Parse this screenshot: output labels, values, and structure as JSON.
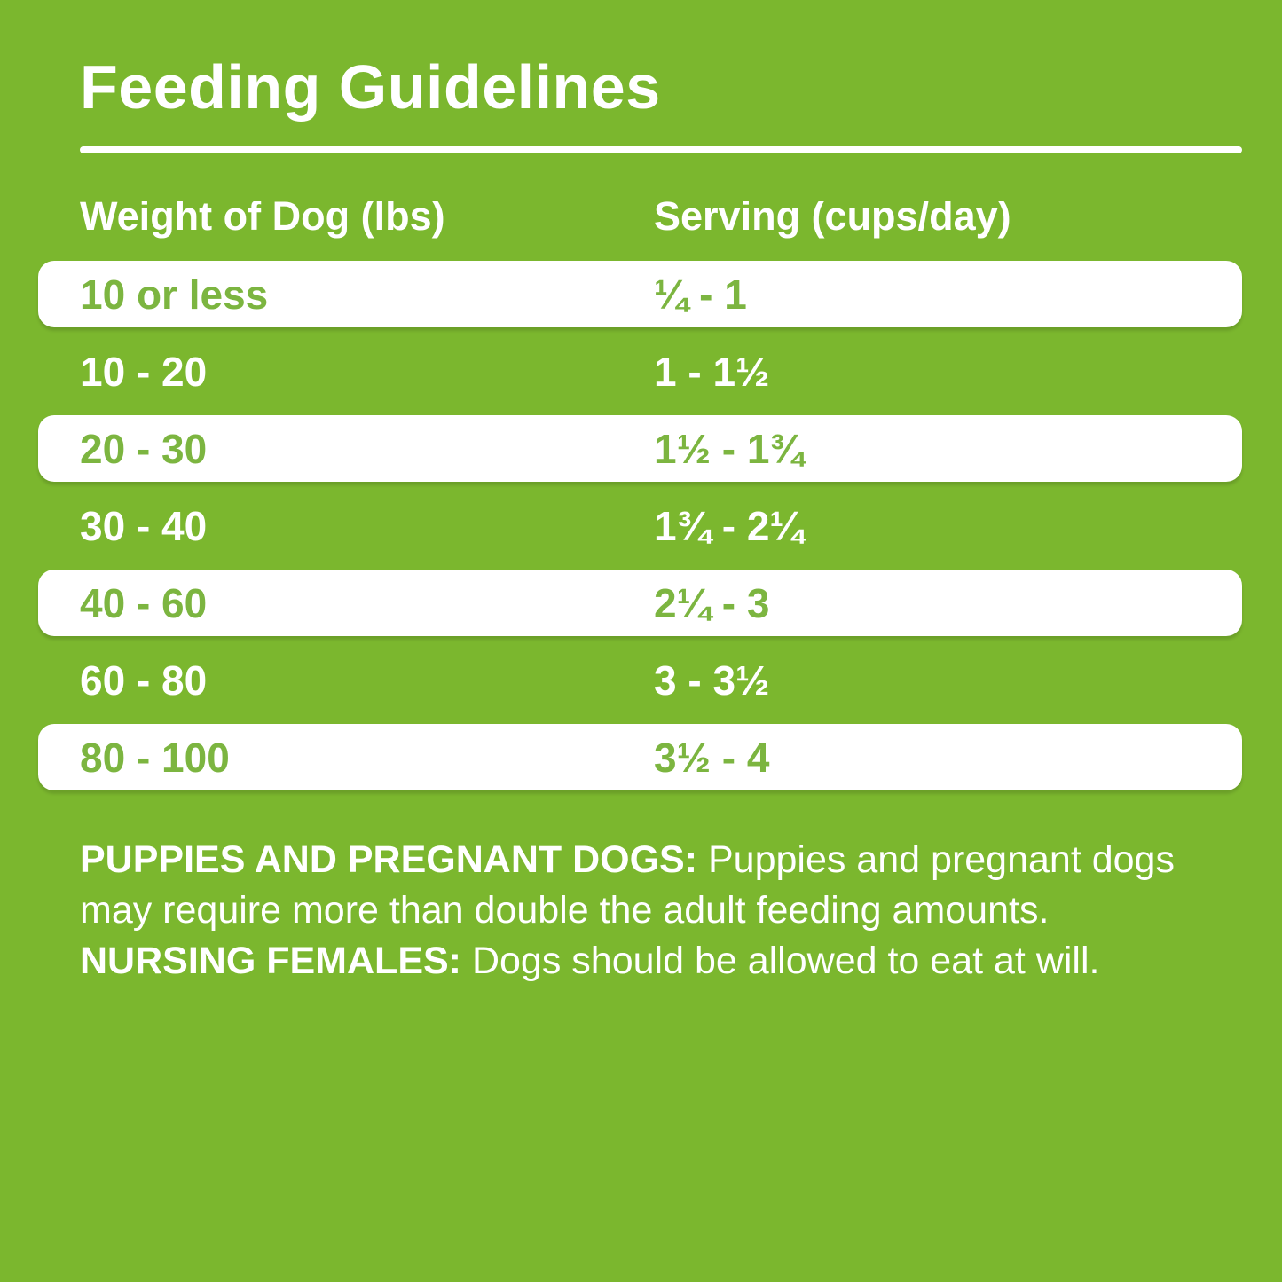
{
  "title": "Feeding Guidelines",
  "colors": {
    "background_green": "#7BB72E",
    "row_white": "#FFFFFF",
    "text_white": "#FFFFFF",
    "text_green": "#7CB540"
  },
  "table": {
    "columns": [
      "Weight of Dog (lbs)",
      "Serving (cups/day)"
    ],
    "rows": [
      {
        "weight": "10 or less",
        "serving": "¼ - 1",
        "variant": "white"
      },
      {
        "weight": "10 - 20",
        "serving": "1 - 1½",
        "variant": "green"
      },
      {
        "weight": "20 - 30",
        "serving": "1½ - 1¾",
        "variant": "white"
      },
      {
        "weight": "30 - 40",
        "serving": "1¾ - 2¼",
        "variant": "green"
      },
      {
        "weight": "40 - 60",
        "serving": "2¼ - 3",
        "variant": "white"
      },
      {
        "weight": "60 - 80",
        "serving": "3 - 3½",
        "variant": "green"
      },
      {
        "weight": "80 - 100",
        "serving": "3½ - 4",
        "variant": "white"
      }
    ]
  },
  "notes": {
    "segments": [
      {
        "text": "PUPPIES AND PREGNANT DOGS: ",
        "bold": true
      },
      {
        "text": "Puppies and pregnant dogs may require more than double the adult feeding amounts. ",
        "bold": false
      },
      {
        "text": "NURSING FEMALES: ",
        "bold": true
      },
      {
        "text": "Dogs should be allowed to eat at will.",
        "bold": false
      }
    ]
  }
}
